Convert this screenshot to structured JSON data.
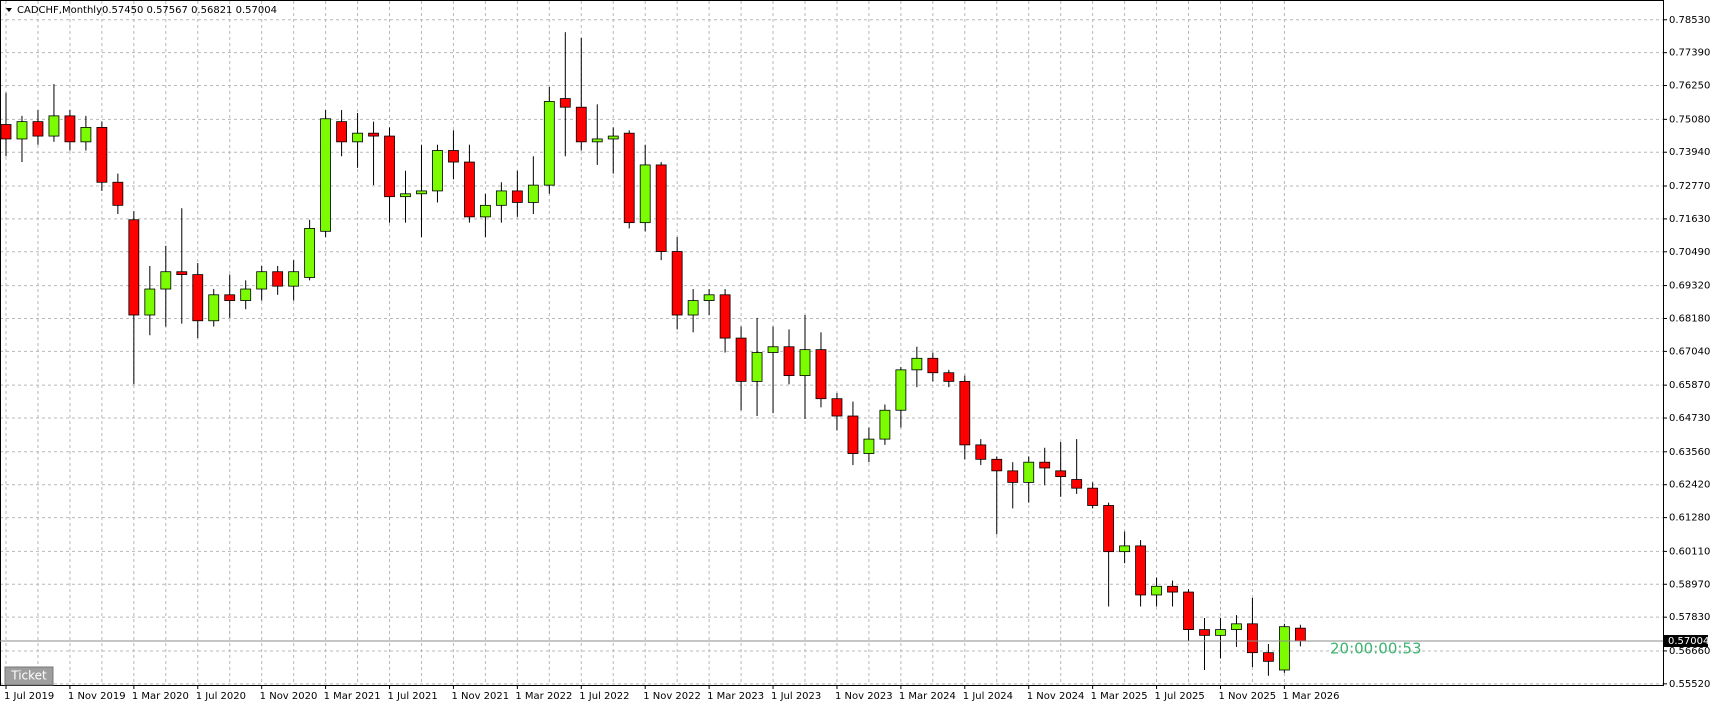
{
  "chart_data": {
    "type": "candlestick",
    "title": "CADCHF,Monthly",
    "header": "0.57450 0.57567 0.56821 0.57004",
    "categories": [
      "1 Jul 2019",
      null,
      null,
      null,
      "1 Nov 2019",
      null,
      null,
      null,
      "1 Mar 2020",
      null,
      null,
      null,
      "1 Jul 2020",
      null,
      null,
      null,
      "1 Nov 2020",
      null,
      null,
      null,
      "1 Mar 2021",
      null,
      null,
      null,
      "1 Jul 2021",
      null,
      null,
      null,
      "1 Nov 2021",
      null,
      null,
      null,
      "1 Mar 2022",
      null,
      null,
      null,
      "1 Jul 2022",
      null,
      null,
      null,
      "1 Nov 2022",
      null,
      null,
      null,
      "1 Mar 2023",
      null,
      null,
      null,
      "1 Jul 2023",
      null,
      null,
      null,
      "1 Nov 2023",
      null,
      null,
      null,
      "1 Mar 2024",
      null,
      null,
      null,
      "1 Jul 2024",
      null,
      null,
      null,
      "1 Nov 2024",
      null,
      null,
      null,
      "1 Mar 2025",
      null,
      null,
      null,
      "1 Jul 2025",
      null,
      null,
      null,
      "1 Nov 2025",
      null,
      null,
      null,
      "1 Mar 2026",
      null
    ],
    "open": [
      0.749,
      0.744,
      0.75,
      0.745,
      0.752,
      0.743,
      0.748,
      0.729,
      0.716,
      0.683,
      0.692,
      0.698,
      0.697,
      0.681,
      0.69,
      0.688,
      0.692,
      0.698,
      0.693,
      0.696,
      0.712,
      0.75,
      0.743,
      0.746,
      0.745,
      0.724,
      0.725,
      0.726,
      0.74,
      0.736,
      0.717,
      0.721,
      0.726,
      0.722,
      0.728,
      0.758,
      0.755,
      0.743,
      0.744,
      0.746,
      0.715,
      0.735,
      0.705,
      0.683,
      0.688,
      0.69,
      0.675,
      0.66,
      0.67,
      0.672,
      0.662,
      0.671,
      0.654,
      0.648,
      0.635,
      0.64,
      0.65,
      0.664,
      0.668,
      0.663,
      0.66,
      0.638,
      0.633,
      0.629,
      0.625,
      0.632,
      0.629,
      0.626,
      0.623,
      0.617,
      0.601,
      0.603,
      0.586,
      0.589,
      0.587,
      0.574,
      0.572,
      0.574,
      0.576,
      0.566,
      0.56,
      0.5745
    ],
    "high": [
      0.76,
      0.752,
      0.754,
      0.763,
      0.754,
      0.752,
      0.75,
      0.732,
      0.719,
      0.7,
      0.707,
      0.72,
      0.701,
      0.692,
      0.697,
      0.695,
      0.7,
      0.7,
      0.702,
      0.716,
      0.754,
      0.754,
      0.753,
      0.75,
      0.748,
      0.733,
      0.742,
      0.742,
      0.747,
      0.742,
      0.725,
      0.729,
      0.733,
      0.738,
      0.762,
      0.781,
      0.779,
      0.756,
      0.748,
      0.747,
      0.742,
      0.736,
      0.71,
      0.692,
      0.692,
      0.692,
      0.679,
      0.682,
      0.679,
      0.678,
      0.683,
      0.677,
      0.656,
      0.653,
      0.644,
      0.652,
      0.665,
      0.672,
      0.67,
      0.664,
      0.662,
      0.64,
      0.634,
      0.632,
      0.634,
      0.637,
      0.639,
      0.64,
      0.625,
      0.618,
      0.608,
      0.605,
      0.592,
      0.591,
      0.588,
      0.578,
      0.578,
      0.579,
      0.585,
      0.569,
      0.576,
      0.57567
    ],
    "low": [
      0.738,
      0.736,
      0.742,
      0.743,
      0.74,
      0.74,
      0.726,
      0.718,
      0.659,
      0.676,
      0.679,
      0.68,
      0.675,
      0.679,
      0.682,
      0.685,
      0.688,
      0.69,
      0.688,
      0.695,
      0.71,
      0.738,
      0.734,
      0.728,
      0.715,
      0.715,
      0.71,
      0.722,
      0.73,
      0.715,
      0.71,
      0.715,
      0.717,
      0.718,
      0.725,
      0.738,
      0.74,
      0.735,
      0.732,
      0.713,
      0.712,
      0.702,
      0.678,
      0.677,
      0.683,
      0.67,
      0.65,
      0.648,
      0.649,
      0.659,
      0.647,
      0.651,
      0.643,
      0.631,
      0.632,
      0.638,
      0.644,
      0.658,
      0.66,
      0.658,
      0.633,
      0.631,
      0.607,
      0.616,
      0.618,
      0.624,
      0.62,
      0.621,
      0.616,
      0.582,
      0.597,
      0.582,
      0.582,
      0.582,
      0.57,
      0.56,
      0.564,
      0.568,
      0.561,
      0.558,
      0.559,
      0.56821
    ],
    "close": [
      0.744,
      0.75,
      0.745,
      0.752,
      0.743,
      0.748,
      0.729,
      0.721,
      0.683,
      0.692,
      0.698,
      0.697,
      0.681,
      0.69,
      0.688,
      0.692,
      0.698,
      0.693,
      0.698,
      0.713,
      0.751,
      0.743,
      0.746,
      0.745,
      0.724,
      0.725,
      0.726,
      0.74,
      0.736,
      0.717,
      0.721,
      0.726,
      0.722,
      0.728,
      0.757,
      0.755,
      0.743,
      0.744,
      0.745,
      0.715,
      0.735,
      0.705,
      0.683,
      0.688,
      0.69,
      0.675,
      0.66,
      0.67,
      0.672,
      0.662,
      0.671,
      0.654,
      0.648,
      0.635,
      0.64,
      0.65,
      0.664,
      0.668,
      0.663,
      0.66,
      0.638,
      0.633,
      0.629,
      0.625,
      0.632,
      0.63,
      0.627,
      0.623,
      0.617,
      0.601,
      0.603,
      0.586,
      0.589,
      0.587,
      0.574,
      0.572,
      0.574,
      0.576,
      0.566,
      0.563,
      0.575,
      0.57004
    ],
    "up_color": "#7cfc00",
    "down_color": "#ff0000",
    "ylim": [
      0.5548,
      0.7918
    ],
    "yticks": [
      {
        "value": 0.7853,
        "label": "0.78530"
      },
      {
        "value": 0.7739,
        "label": "0.77390"
      },
      {
        "value": 0.7625,
        "label": "0.76250"
      },
      {
        "value": 0.7508,
        "label": "0.75080"
      },
      {
        "value": 0.7394,
        "label": "0.73940"
      },
      {
        "value": 0.7277,
        "label": "0.72770"
      },
      {
        "value": 0.7163,
        "label": "0.71630"
      },
      {
        "value": 0.7049,
        "label": "0.70490"
      },
      {
        "value": 0.6932,
        "label": "0.69320"
      },
      {
        "value": 0.6818,
        "label": "0.68180"
      },
      {
        "value": 0.6704,
        "label": "0.67040"
      },
      {
        "value": 0.6587,
        "label": "0.65870"
      },
      {
        "value": 0.6473,
        "label": "0.64730"
      },
      {
        "value": 0.6356,
        "label": "0.63560"
      },
      {
        "value": 0.6242,
        "label": "0.62420"
      },
      {
        "value": 0.6128,
        "label": "0.61280"
      },
      {
        "value": 0.6011,
        "label": "0.60110"
      },
      {
        "value": 0.5897,
        "label": "0.58970"
      },
      {
        "value": 0.5783,
        "label": "0.57830"
      },
      {
        "value": 0.5666,
        "label": "0.56660"
      },
      {
        "value": 0.5552,
        "label": "0.55520"
      }
    ],
    "grid": true,
    "last_price": 0.57004,
    "timer": "20:00:00:53"
  },
  "ui": {
    "button": "Ticket"
  }
}
